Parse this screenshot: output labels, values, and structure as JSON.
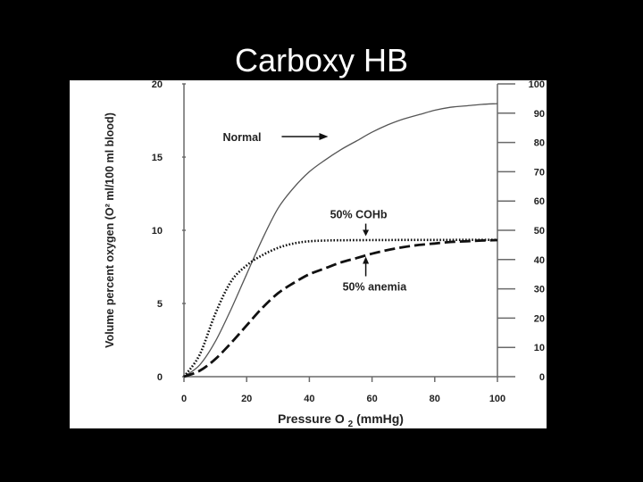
{
  "slide": {
    "title": "Carboxy HB"
  },
  "chart_data": {
    "type": "line",
    "xlabel": "Pressure O",
    "xlabel_subscript": "2",
    "xlabel_unit": "(mmHg)",
    "ylabel": "Volume percent oxygen (O² ml/100 ml blood)",
    "xlim": [
      0,
      100
    ],
    "ylim": [
      0,
      20
    ],
    "y2lim": [
      0,
      100
    ],
    "x_ticks": [
      "0",
      "20",
      "40",
      "60",
      "80",
      "100"
    ],
    "y_ticks": [
      "0",
      "5",
      "10",
      "15",
      "20"
    ],
    "y2_ticks": [
      "0",
      "10",
      "20",
      "30",
      "40",
      "50",
      "60",
      "70",
      "80",
      "90",
      "100"
    ],
    "grid": false,
    "series": [
      {
        "name": "Normal",
        "style": "solid",
        "x": [
          0,
          5,
          10,
          15,
          20,
          25,
          30,
          35,
          40,
          45,
          50,
          55,
          60,
          65,
          70,
          75,
          80,
          85,
          90,
          95,
          100
        ],
        "y": [
          0,
          0.8,
          2.4,
          4.6,
          7.0,
          9.4,
          11.5,
          12.9,
          14.0,
          14.8,
          15.5,
          16.1,
          16.7,
          17.2,
          17.6,
          17.9,
          18.2,
          18.4,
          18.5,
          18.6,
          18.65
        ]
      },
      {
        "name": "50% COHb",
        "style": "dotted",
        "x": [
          0,
          5,
          10,
          15,
          20,
          25,
          30,
          35,
          40,
          45,
          50,
          60,
          70,
          80,
          90,
          100
        ],
        "y": [
          0,
          1.5,
          4.3,
          6.5,
          7.6,
          8.3,
          8.8,
          9.1,
          9.25,
          9.3,
          9.32,
          9.33,
          9.34,
          9.34,
          9.35,
          9.35
        ]
      },
      {
        "name": "50% anemia",
        "style": "dashed",
        "x": [
          0,
          5,
          10,
          15,
          20,
          25,
          30,
          35,
          40,
          45,
          50,
          55,
          60,
          65,
          70,
          75,
          80,
          85,
          90,
          95,
          100
        ],
        "y": [
          0,
          0.4,
          1.2,
          2.3,
          3.5,
          4.7,
          5.7,
          6.4,
          7.0,
          7.4,
          7.8,
          8.1,
          8.4,
          8.65,
          8.85,
          9.0,
          9.1,
          9.2,
          9.25,
          9.3,
          9.33
        ]
      }
    ],
    "annotations": [
      {
        "text": "Normal",
        "arrow": "right",
        "target": [
          46,
          16.4
        ]
      },
      {
        "text": "50% COHb",
        "arrow": "down",
        "target": [
          58,
          9.6
        ]
      },
      {
        "text": "50% anemia",
        "arrow": "up",
        "target": [
          58,
          8.2
        ]
      }
    ]
  }
}
